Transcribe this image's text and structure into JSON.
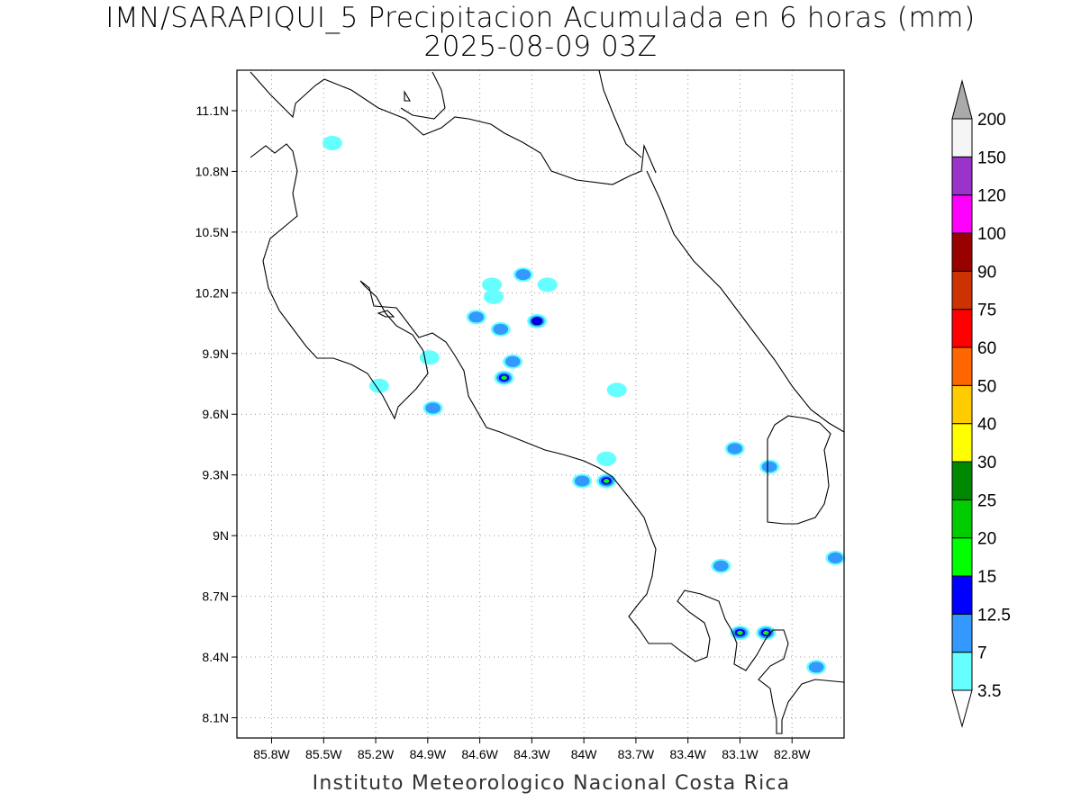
{
  "title": {
    "line1": "IMN/SARAPIQUI_5 Precipitacion Acumulada en 6 horas (mm)",
    "line2": "2025-08-09 03Z"
  },
  "footer": "Instituto Meteorologico Nacional Costa Rica",
  "axes": {
    "x_ticks": [
      "85.8W",
      "85.5W",
      "85.2W",
      "84.9W",
      "84.6W",
      "84.3W",
      "84W",
      "83.7W",
      "83.4W",
      "83.1W",
      "82.8W"
    ],
    "x_values": [
      -85.8,
      -85.5,
      -85.2,
      -84.9,
      -84.6,
      -84.3,
      -84.0,
      -83.7,
      -83.4,
      -83.1,
      -82.8
    ],
    "y_ticks": [
      "11.1N",
      "10.8N",
      "10.5N",
      "10.2N",
      "9.9N",
      "9.6N",
      "9.3N",
      "9N",
      "8.7N",
      "8.4N",
      "8.1N"
    ],
    "y_values": [
      11.1,
      10.8,
      10.5,
      10.2,
      9.9,
      9.6,
      9.3,
      9.0,
      8.7,
      8.4,
      8.1
    ],
    "lon_range": [
      -86.0,
      -82.5
    ],
    "lat_range": [
      8.0,
      11.3
    ],
    "grid": "dotted"
  },
  "legend": {
    "levels": [
      "3.5",
      "7",
      "12.5",
      "15",
      "20",
      "25",
      "30",
      "40",
      "50",
      "60",
      "75",
      "90",
      "100",
      "120",
      "150",
      "200"
    ],
    "colors": [
      "#66ffff",
      "#3399ff",
      "#0000ff",
      "#00ff00",
      "#00cc00",
      "#008800",
      "#ffff00",
      "#ffcc00",
      "#ff6600",
      "#ff0000",
      "#cc3300",
      "#990000",
      "#ff00ff",
      "#9933cc",
      "#f5f5f5",
      "#aaaaaa"
    ],
    "placement": "right"
  },
  "precip_cells": [
    {
      "lon": -84.35,
      "lat": 10.29,
      "value": 7
    },
    {
      "lon": -84.53,
      "lat": 10.24,
      "value": 3.5
    },
    {
      "lon": -84.52,
      "lat": 10.18,
      "value": 3.5
    },
    {
      "lon": -84.21,
      "lat": 10.24,
      "value": 3.5
    },
    {
      "lon": -84.62,
      "lat": 10.08,
      "value": 7
    },
    {
      "lon": -84.27,
      "lat": 10.06,
      "value": 12.5
    },
    {
      "lon": -84.48,
      "lat": 10.02,
      "value": 7
    },
    {
      "lon": -84.41,
      "lat": 9.86,
      "value": 7
    },
    {
      "lon": -84.46,
      "lat": 9.78,
      "value": 25
    },
    {
      "lon": -84.87,
      "lat": 9.63,
      "value": 7
    },
    {
      "lon": -84.89,
      "lat": 9.88,
      "value": 3.5
    },
    {
      "lon": -83.81,
      "lat": 9.72,
      "value": 3.5
    },
    {
      "lon": -83.87,
      "lat": 9.27,
      "value": 25
    },
    {
      "lon": -83.87,
      "lat": 9.38,
      "value": 3.5
    },
    {
      "lon": -84.01,
      "lat": 9.27,
      "value": 7
    },
    {
      "lon": -83.13,
      "lat": 9.43,
      "value": 7
    },
    {
      "lon": -82.93,
      "lat": 9.34,
      "value": 7
    },
    {
      "lon": -83.21,
      "lat": 8.85,
      "value": 7
    },
    {
      "lon": -82.55,
      "lat": 8.89,
      "value": 7
    },
    {
      "lon": -83.1,
      "lat": 8.52,
      "value": 20
    },
    {
      "lon": -82.95,
      "lat": 8.52,
      "value": 20
    },
    {
      "lon": -82.66,
      "lat": 8.35,
      "value": 7
    },
    {
      "lon": -85.18,
      "lat": 9.74,
      "value": 3.5
    },
    {
      "lon": -85.45,
      "lat": 10.94,
      "value": 3.5
    }
  ]
}
